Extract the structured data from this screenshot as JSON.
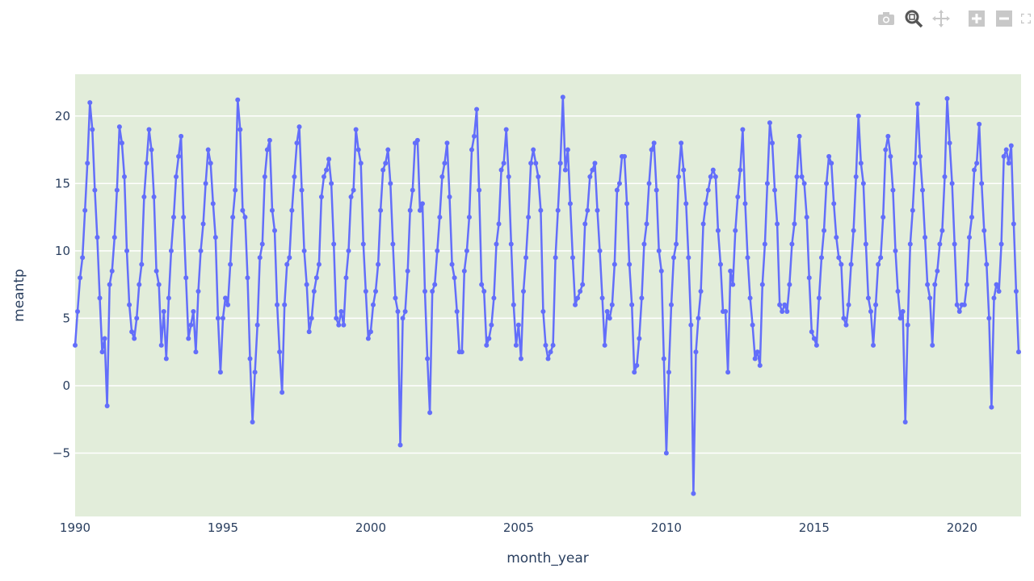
{
  "chart_data": {
    "type": "line",
    "mode": "lines+markers",
    "title": "",
    "xlabel": "month_year",
    "ylabel": "meantp",
    "xlim": [
      1990,
      2022
    ],
    "ylim": [
      -9.7,
      23.1
    ],
    "x_ticks": [
      1990,
      1995,
      2000,
      2005,
      2010,
      2015,
      2020
    ],
    "x_tick_labels": [
      "1990",
      "1995",
      "2000",
      "2005",
      "2010",
      "2015",
      "2020"
    ],
    "y_ticks": [
      -5,
      0,
      5,
      10,
      15,
      20
    ],
    "y_tick_labels": [
      "−5",
      "0",
      "5",
      "10",
      "15",
      "20"
    ],
    "grid": true,
    "colors": {
      "line": "#636efa",
      "plot_bg": "#e2edda",
      "grid": "#ffffff"
    },
    "series": {
      "start_year": 1990,
      "monthly_values": [
        [
          3.0,
          5.5,
          8.0,
          9.5,
          13.0,
          16.5,
          21.0,
          19.0,
          14.5,
          11.0,
          6.5,
          2.5
        ],
        [
          3.5,
          -1.5,
          7.5,
          8.5,
          11.0,
          14.5,
          19.2,
          18.0,
          15.5,
          10.0,
          6.0,
          4.0
        ],
        [
          3.5,
          5.0,
          7.5,
          9.0,
          14.0,
          16.5,
          19.0,
          17.5,
          14.0,
          8.5,
          7.5,
          3.0
        ],
        [
          5.5,
          2.0,
          6.5,
          10.0,
          12.5,
          15.5,
          17.0,
          18.5,
          12.5,
          8.0,
          3.5,
          4.5
        ],
        [
          5.5,
          2.5,
          7.0,
          10.0,
          12.0,
          15.0,
          17.5,
          16.5,
          13.5,
          11.0,
          5.0,
          1.0
        ],
        [
          5.0,
          6.5,
          6.0,
          9.0,
          12.5,
          14.5,
          21.2,
          19.0,
          13.0,
          12.5,
          8.0,
          2.0
        ],
        [
          -2.7,
          1.0,
          4.5,
          9.5,
          10.5,
          15.5,
          17.5,
          18.2,
          13.0,
          11.5,
          6.0,
          2.5
        ],
        [
          -0.5,
          6.0,
          9.0,
          9.5,
          13.0,
          15.5,
          18.0,
          19.2,
          14.5,
          10.0,
          7.5,
          4.0
        ],
        [
          5.0,
          7.0,
          8.0,
          9.0,
          14.0,
          15.5,
          16.0,
          16.8,
          15.0,
          10.5,
          5.0,
          4.5
        ],
        [
          5.5,
          4.5,
          8.0,
          10.0,
          14.0,
          14.5,
          19.0,
          17.5,
          16.5,
          10.5,
          7.0,
          3.5
        ],
        [
          4.0,
          6.0,
          7.0,
          9.0,
          13.0,
          16.0,
          16.5,
          17.5,
          15.0,
          10.5,
          6.5,
          5.5
        ],
        [
          -4.4,
          5.0,
          5.5,
          8.5,
          13.0,
          14.5,
          18.0,
          18.2,
          13.0,
          13.5,
          7.0,
          2.0
        ],
        [
          -2.0,
          7.0,
          7.5,
          10.0,
          12.5,
          15.5,
          16.5,
          18.0,
          14.0,
          9.0,
          8.0,
          5.5
        ],
        [
          2.5,
          2.5,
          8.5,
          10.0,
          12.5,
          17.5,
          18.5,
          20.5,
          14.5,
          7.5,
          7.0,
          3.0
        ],
        [
          3.5,
          4.5,
          6.5,
          10.5,
          12.0,
          16.0,
          16.5,
          19.0,
          15.5,
          10.5,
          6.0,
          3.0
        ],
        [
          4.5,
          2.0,
          7.0,
          9.5,
          12.5,
          16.5,
          17.5,
          16.5,
          15.5,
          13.0,
          5.5,
          3.0
        ],
        [
          2.0,
          2.5,
          3.0,
          9.5,
          13.0,
          16.5,
          21.4,
          16.0,
          17.5,
          13.5,
          9.5,
          6.0
        ],
        [
          6.5,
          7.0,
          7.5,
          12.0,
          13.0,
          15.5,
          16.0,
          16.5,
          13.0,
          10.0,
          6.5,
          3.0
        ],
        [
          5.5,
          5.0,
          6.0,
          9.0,
          14.5,
          15.0,
          17.0,
          17.0,
          13.5,
          9.0,
          6.0,
          1.0
        ],
        [
          1.5,
          3.5,
          6.5,
          10.5,
          12.0,
          15.0,
          17.5,
          18.0,
          14.5,
          10.0,
          8.5,
          2.0
        ],
        [
          -5.0,
          1.0,
          6.0,
          9.5,
          10.5,
          15.5,
          18.0,
          16.0,
          13.5,
          9.5,
          4.5,
          -8.0
        ],
        [
          2.5,
          5.0,
          7.0,
          12.0,
          13.5,
          14.5,
          15.5,
          16.0,
          15.5,
          11.5,
          9.0,
          5.5
        ],
        [
          5.5,
          1.0,
          8.5,
          7.5,
          11.5,
          14.0,
          16.0,
          19.0,
          13.5,
          9.5,
          6.5,
          4.5
        ],
        [
          2.0,
          2.5,
          1.5,
          7.5,
          10.5,
          15.0,
          19.5,
          18.0,
          14.5,
          12.0,
          6.0,
          5.5
        ],
        [
          6.0,
          5.5,
          7.5,
          10.5,
          12.0,
          15.5,
          18.5,
          15.5,
          15.0,
          12.5,
          8.0,
          4.0
        ],
        [
          3.5,
          3.0,
          6.5,
          9.5,
          11.5,
          15.0,
          17.0,
          16.5,
          13.5,
          11.0,
          9.5,
          9.0
        ],
        [
          5.0,
          4.5,
          6.0,
          9.0,
          11.5,
          15.5,
          20.0,
          16.5,
          15.0,
          10.5,
          6.5,
          5.5
        ],
        [
          3.0,
          6.0,
          9.0,
          9.5,
          12.5,
          17.5,
          18.5,
          17.0,
          14.5,
          10.0,
          7.0,
          5.0
        ],
        [
          5.5,
          -2.7,
          4.5,
          10.5,
          13.0,
          16.5,
          20.9,
          17.0,
          14.5,
          11.0,
          7.5,
          6.5
        ],
        [
          3.0,
          7.5,
          8.5,
          10.5,
          11.5,
          15.5,
          21.3,
          18.0,
          15.0,
          10.5,
          6.0,
          5.5
        ],
        [
          6.0,
          6.0,
          7.5,
          11.0,
          12.5,
          16.0,
          16.5,
          19.4,
          15.0,
          11.5,
          9.0,
          5.0
        ],
        [
          -1.6,
          6.5,
          7.5,
          7.0,
          10.5,
          17.0,
          17.5,
          16.5,
          17.8,
          12.0,
          7.0,
          2.5
        ]
      ]
    }
  },
  "modebar": [
    {
      "name": "camera-icon",
      "label": "Download plot as a png"
    },
    {
      "name": "zoom-icon",
      "label": "Zoom"
    },
    {
      "name": "pan-icon",
      "label": "Pan"
    },
    {
      "name": "zoom-in-icon",
      "label": "Zoom in"
    },
    {
      "name": "zoom-out-icon",
      "label": "Zoom out"
    },
    {
      "name": "autoscale-icon",
      "label": "Autoscale"
    }
  ]
}
